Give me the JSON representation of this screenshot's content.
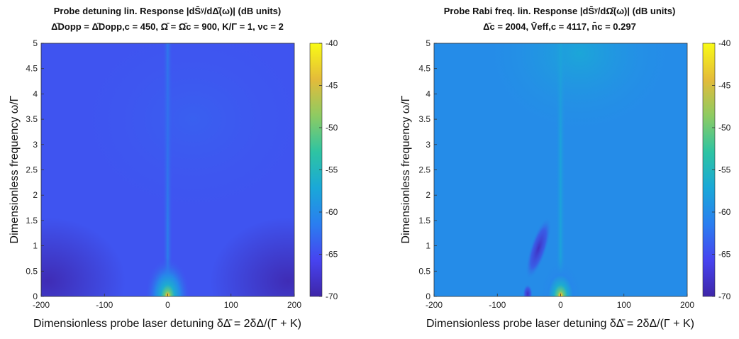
{
  "chart_data": [
    {
      "type": "heatmap",
      "title_line1": "Probe detuning lin. Response |dS̄ʸ/dΔ̄(ω)| (dB units)",
      "title_line2": "Δ̄Dopp = Δ̄Dopp,c = 450, Ω̄ = Ω̄c = 900, K/Γ = 1, νc = 2",
      "xlabel": "Dimensionless probe laser detuning δΔ̄ = 2δΔ/(Γ + K)",
      "ylabel": "Dimensionless frequency ω/Γ",
      "xlim": [
        -200,
        200
      ],
      "ylim": [
        0,
        5
      ],
      "xticks": [
        -200,
        -100,
        0,
        100,
        200
      ],
      "xtick_labels": [
        "-200",
        "-100",
        "0",
        "100",
        "200"
      ],
      "yticks": [
        0,
        0.5,
        1,
        1.5,
        2,
        2.5,
        3,
        3.5,
        4,
        4.5,
        5
      ],
      "ytick_labels": [
        "0",
        "0.5",
        "1",
        "1.5",
        "2",
        "2.5",
        "3",
        "3.5",
        "4",
        "4.5",
        "5"
      ],
      "colorbar": {
        "range": [
          -70,
          -40
        ],
        "ticks": [
          -70,
          -65,
          -60,
          -55,
          -50,
          -45,
          -40
        ],
        "tick_labels": [
          "-70",
          "-65",
          "-60",
          "-55",
          "-50",
          "-45",
          "-40"
        ]
      },
      "colormap": "parula",
      "peak": {
        "x": 0,
        "y": 0,
        "value": -40
      },
      "background_level": -64.5
    },
    {
      "type": "heatmap",
      "title_line1": "Probe Rabi freq. lin. Response |dS̄ʸ/dΩ̄(ω)| (dB units)",
      "title_line2": "Δ̄c = 2004, V̄eff,c = 4117, n̄c = 0.297",
      "xlabel": "Dimensionless probe laser detuning δΔ̄ = 2δΔ/(Γ + K)",
      "ylabel": "Dimensionless frequency ω/Γ",
      "xlim": [
        -200,
        200
      ],
      "ylim": [
        0,
        5
      ],
      "xticks": [
        -200,
        -100,
        0,
        100,
        200
      ],
      "xtick_labels": [
        "-200",
        "-100",
        "0",
        "100",
        "200"
      ],
      "yticks": [
        0,
        0.5,
        1,
        1.5,
        2,
        2.5,
        3,
        3.5,
        4,
        4.5,
        5
      ],
      "ytick_labels": [
        "0",
        "0.5",
        "1",
        "1.5",
        "2",
        "2.5",
        "3",
        "3.5",
        "4",
        "4.5",
        "5"
      ],
      "colorbar": {
        "range": [
          -70,
          -40
        ],
        "ticks": [
          -70,
          -65,
          -60,
          -55,
          -50,
          -45,
          -40
        ],
        "tick_labels": [
          "-70",
          "-65",
          "-60",
          "-55",
          "-50",
          "-45",
          "-40"
        ]
      },
      "colormap": "parula",
      "peak": {
        "x": 0,
        "y": 0,
        "value": -40
      },
      "background_level": -60
    }
  ],
  "colors": {
    "parula": [
      "#3e26a8",
      "#4743f0",
      "#2a7ef0",
      "#1aa8d8",
      "#2ec4a2",
      "#8ecb62",
      "#e4bb3a",
      "#f9fb15"
    ]
  }
}
